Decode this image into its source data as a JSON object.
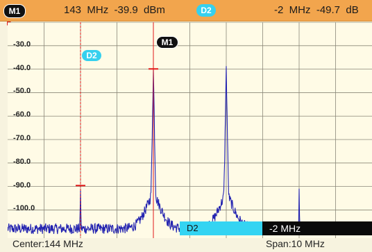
{
  "marker_bar": {
    "m1_badge": "M1",
    "m1_readout": "143  MHz  -39.9  dBm",
    "d2_badge": "D2",
    "d2_readout": "-2  MHz  -49.7  dB"
  },
  "plot": {
    "m1_flag": "M1",
    "d2_flag": "D2",
    "y_labels": [
      "-30.0",
      "-40.0",
      "-50.0",
      "-60.0",
      "-70.0",
      "-80.0",
      "-90.0",
      "-100.0"
    ],
    "trace_color": "#2323b0",
    "marker_color": "#e21a1a"
  },
  "delta": {
    "name": "D2",
    "value": "-2 MHz"
  },
  "status": {
    "center": "Center:144 MHz",
    "span": "Span:10 MHz"
  },
  "chart_data": {
    "type": "line",
    "title": "",
    "xlabel": "",
    "ylabel": "",
    "x_unit": "MHz",
    "y_unit": "dBm",
    "xlim": [
      139,
      149
    ],
    "ylim": [
      -112,
      -20
    ],
    "y_ticks": [
      -30,
      -40,
      -50,
      -60,
      -70,
      -80,
      -90,
      -100
    ],
    "grid": true,
    "noise_floor": -108,
    "peaks": [
      {
        "x": 141,
        "y": -90
      },
      {
        "x": 143,
        "y": -39.9
      },
      {
        "x": 145,
        "y": -40
      },
      {
        "x": 147,
        "y": -91
      }
    ],
    "markers": [
      {
        "name": "M1",
        "x": 143,
        "y": -39.9
      },
      {
        "name": "D2",
        "x": 141,
        "y": -89.6,
        "delta_freq": "-2 MHz",
        "delta_level": "-49.7 dB"
      }
    ]
  }
}
